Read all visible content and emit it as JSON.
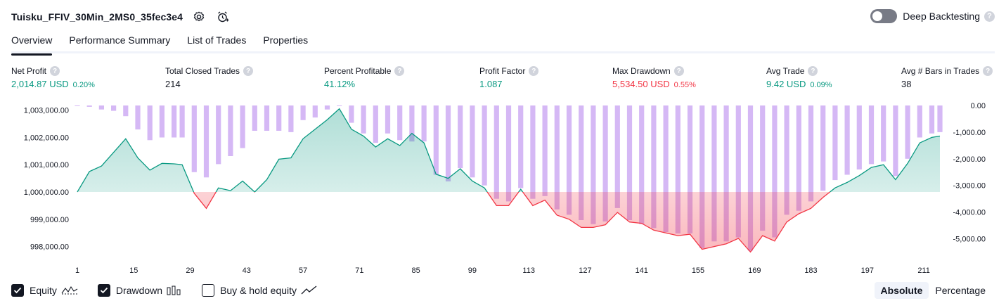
{
  "header": {
    "title": "Tuisku_FFIV_30Min_2MS0_35fec3e4",
    "deep_backtesting_label": "Deep Backtesting",
    "help_glyph": "?"
  },
  "tabs": [
    "Overview",
    "Performance Summary",
    "List of Trades",
    "Properties"
  ],
  "metrics": [
    {
      "label": "Net Profit",
      "value": "2,014.87 USD",
      "pct": "0.20%",
      "tone": "pos"
    },
    {
      "label": "Total Closed Trades",
      "value": "214",
      "pct": "",
      "tone": "neu"
    },
    {
      "label": "Percent Profitable",
      "value": "41.12%",
      "pct": "",
      "tone": "pos"
    },
    {
      "label": "Profit Factor",
      "value": "1.087",
      "pct": "",
      "tone": "pos"
    },
    {
      "label": "Max Drawdown",
      "value": "5,534.50 USD",
      "pct": "0.55%",
      "tone": "neg"
    },
    {
      "label": "Avg Trade",
      "value": "9.42 USD",
      "pct": "0.09%",
      "tone": "pos"
    },
    {
      "label": "Avg # Bars in Trades",
      "value": "38",
      "pct": "",
      "tone": "neu"
    }
  ],
  "legend": {
    "equity": "Equity",
    "drawdown": "Drawdown",
    "buy_hold": "Buy & hold equity",
    "equity_checked": true,
    "drawdown_checked": true,
    "buy_hold_checked": false
  },
  "modes": {
    "absolute": "Absolute",
    "percentage": "Percentage",
    "selected": "Absolute"
  },
  "colors": {
    "positive": "#089981",
    "negative": "#f23645",
    "drawdown_bar": "#c9a4f2",
    "text": "#131722"
  },
  "chart_data": {
    "type": "area",
    "x_ticks": [
      "1",
      "15",
      "29",
      "43",
      "57",
      "71",
      "85",
      "99",
      "113",
      "127",
      "141",
      "155",
      "169",
      "183",
      "197",
      "211"
    ],
    "left_axis": {
      "ticks": [
        "1,003,000.00",
        "1,002,000.00",
        "1,001,000.00",
        "1,000,000.00",
        "999,000.00",
        "998,000.00"
      ],
      "tick_values": [
        1003000,
        1002000,
        1001000,
        1000000,
        999000,
        998000
      ],
      "baseline": 1000000
    },
    "right_axis": {
      "ticks": [
        "0.00",
        "-1,000.00",
        "-2,000.00",
        "-3,000.00",
        "-4,000.00",
        "-5,000.00"
      ],
      "tick_values": [
        0,
        -1000,
        -2000,
        -3000,
        -4000,
        -5000
      ]
    },
    "equity": {
      "x": [
        1,
        4,
        7,
        10,
        13,
        16,
        19,
        22,
        25,
        27,
        30,
        33,
        36,
        39,
        42,
        45,
        48,
        51,
        54,
        57,
        60,
        63,
        66,
        69,
        72,
        75,
        78,
        81,
        84,
        87,
        90,
        93,
        96,
        99,
        102,
        105,
        108,
        111,
        114,
        117,
        120,
        123,
        126,
        129,
        132,
        135,
        138,
        141,
        144,
        147,
        150,
        153,
        156,
        159,
        162,
        165,
        168,
        171,
        174,
        177,
        180,
        183,
        186,
        189,
        192,
        195,
        198,
        201,
        204,
        207,
        210,
        213,
        215
      ],
      "y": [
        1000000,
        1000750,
        1000950,
        1001450,
        1001950,
        1001250,
        1000800,
        1001050,
        1001030,
        1001000,
        999950,
        999400,
        1000150,
        1000050,
        1000400,
        1000000,
        1000450,
        1001200,
        1001250,
        1001950,
        1002300,
        1002650,
        1003050,
        1002300,
        1002050,
        1001650,
        1001950,
        1001700,
        1002150,
        1001800,
        1000650,
        1000500,
        1000850,
        1000400,
        1000150,
        999500,
        999500,
        1000100,
        999500,
        999700,
        999150,
        999000,
        998700,
        998700,
        998800,
        999250,
        998900,
        998850,
        998600,
        998500,
        998400,
        998450,
        997900,
        998000,
        998100,
        998300,
        997800,
        998400,
        998200,
        998900,
        999200,
        999400,
        999800,
        1000150,
        1000350,
        1000600,
        1000900,
        1001000,
        1000450,
        1001050,
        1001800,
        1002000,
        1002050
      ]
    },
    "drawdown": {
      "x": [
        1,
        4,
        7,
        10,
        13,
        16,
        19,
        22,
        25,
        27,
        30,
        33,
        36,
        39,
        42,
        45,
        48,
        51,
        54,
        57,
        60,
        63,
        66,
        69,
        72,
        75,
        78,
        81,
        84,
        87,
        90,
        93,
        96,
        99,
        102,
        105,
        108,
        111,
        114,
        117,
        120,
        123,
        126,
        129,
        132,
        135,
        138,
        141,
        144,
        147,
        150,
        153,
        156,
        159,
        162,
        165,
        168,
        171,
        174,
        177,
        180,
        183,
        186,
        189,
        192,
        195,
        198,
        201,
        204,
        207,
        210,
        213,
        215
      ],
      "y": [
        0,
        -50,
        -150,
        -200,
        -400,
        -900,
        -1300,
        -1200,
        -1200,
        -1200,
        -2500,
        -2700,
        -2200,
        -1900,
        -1600,
        -950,
        -950,
        -950,
        -1000,
        -550,
        -450,
        -150,
        0,
        -650,
        -1050,
        -1400,
        -1050,
        -1300,
        -1350,
        -1350,
        -2600,
        -2850,
        -2350,
        -2700,
        -3000,
        -3500,
        -3600,
        -3100,
        -3500,
        -3400,
        -3900,
        -4100,
        -4300,
        -4450,
        -4350,
        -3850,
        -4300,
        -4450,
        -4600,
        -4750,
        -4800,
        -4800,
        -5350,
        -5100,
        -5100,
        -4950,
        -5450,
        -4700,
        -4950,
        -4100,
        -3950,
        -3600,
        -3200,
        -2800,
        -2600,
        -2400,
        -2200,
        -2100,
        -2650,
        -2000,
        -1200,
        -1050,
        -1000
      ]
    }
  }
}
